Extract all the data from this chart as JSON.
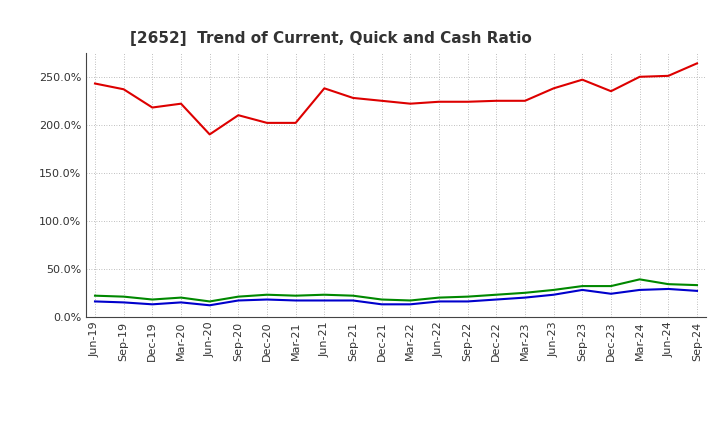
{
  "title": "[2652]  Trend of Current, Quick and Cash Ratio",
  "labels": [
    "Jun-19",
    "Sep-19",
    "Dec-19",
    "Mar-20",
    "Jun-20",
    "Sep-20",
    "Dec-20",
    "Mar-21",
    "Jun-21",
    "Sep-21",
    "Dec-21",
    "Mar-22",
    "Jun-22",
    "Sep-22",
    "Dec-22",
    "Mar-23",
    "Jun-23",
    "Sep-23",
    "Dec-23",
    "Mar-24",
    "Jun-24",
    "Sep-24"
  ],
  "current_ratio": [
    243,
    237,
    218,
    222,
    190,
    210,
    202,
    202,
    238,
    228,
    225,
    222,
    224,
    224,
    225,
    225,
    238,
    247,
    235,
    250,
    251,
    264
  ],
  "quick_ratio": [
    22,
    21,
    18,
    20,
    16,
    21,
    23,
    22,
    23,
    22,
    18,
    17,
    20,
    21,
    23,
    25,
    28,
    32,
    32,
    39,
    34,
    33
  ],
  "cash_ratio": [
    16,
    15,
    13,
    15,
    12,
    17,
    18,
    17,
    17,
    17,
    13,
    13,
    16,
    16,
    18,
    20,
    23,
    28,
    24,
    28,
    29,
    27
  ],
  "current_color": "#dd0000",
  "quick_color": "#008800",
  "cash_color": "#0000cc",
  "background_color": "#ffffff",
  "grid_color": "#aaaaaa",
  "ylim": [
    0,
    275
  ],
  "yticks": [
    0,
    50,
    100,
    150,
    200,
    250
  ],
  "ytick_labels": [
    "0.0%",
    "50.0%",
    "100.0%",
    "150.0%",
    "200.0%",
    "250.0%"
  ],
  "title_color": "#333333",
  "title_fontsize": 11,
  "tick_fontsize": 8,
  "legend_fontsize": 9
}
